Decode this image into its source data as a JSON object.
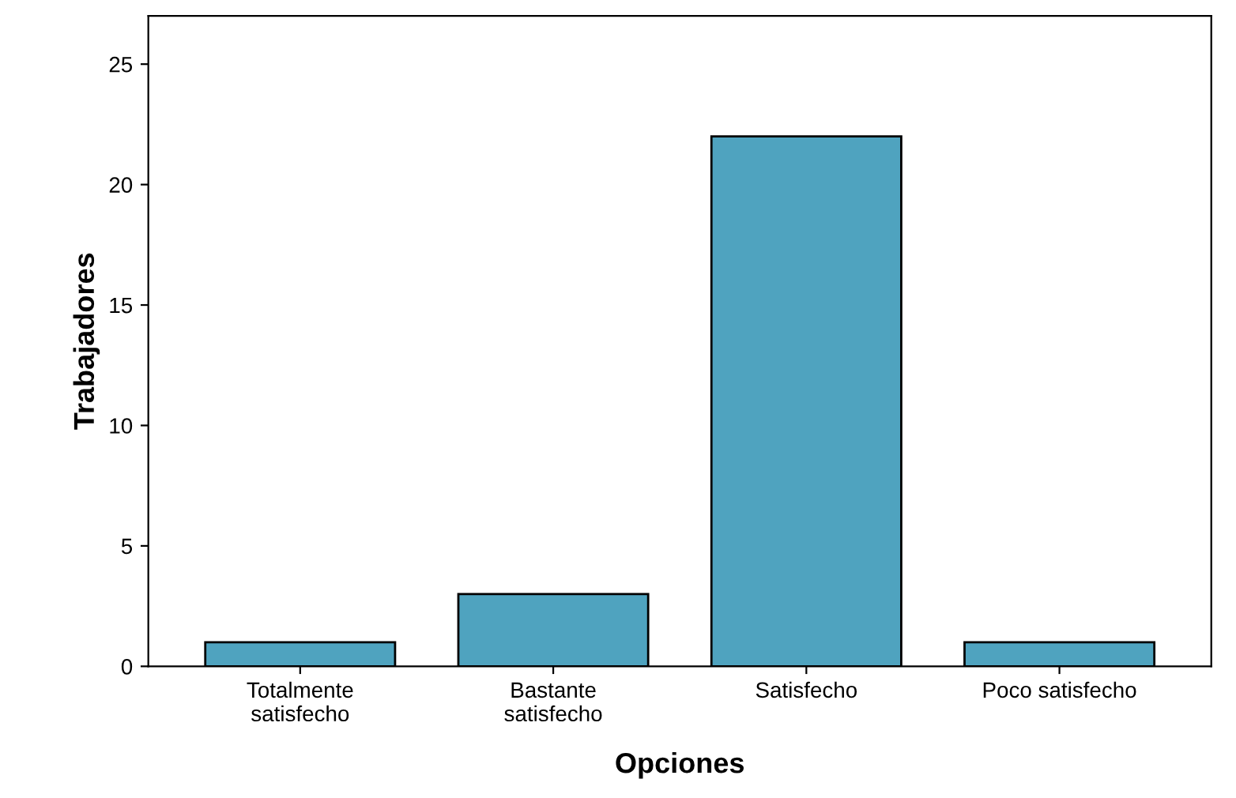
{
  "chart_data": {
    "type": "bar",
    "xlabel": "Opciones",
    "ylabel": "Trabajadores",
    "categories": [
      "Totalmente\nsatisfecho",
      "Bastante\nsatisfecho",
      "Satisfecho",
      "Poco satisfecho"
    ],
    "values": [
      1,
      3,
      22,
      1
    ],
    "color": "#4fa3bf",
    "ylim": [
      0,
      27
    ],
    "yticks": [
      0,
      5,
      10,
      15,
      20,
      25
    ],
    "grid": false,
    "legend": false
  }
}
